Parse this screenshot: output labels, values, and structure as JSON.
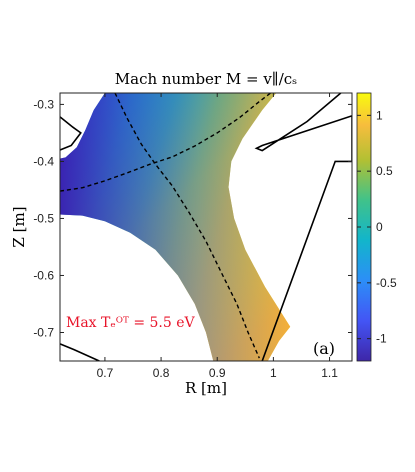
{
  "chart_data": {
    "type": "heatmap",
    "title": "Mach number M = v∥/cₛ",
    "xlabel": "R [m]",
    "ylabel": "Z [m]",
    "xlim": [
      0.62,
      1.14
    ],
    "ylim": [
      -0.75,
      -0.28
    ],
    "x_ticks": [
      0.7,
      0.8,
      0.9,
      1.0,
      1.1
    ],
    "x_tick_labels": [
      "0.7",
      "0.8",
      "0.9",
      "1",
      "1.1"
    ],
    "y_ticks": [
      -0.3,
      -0.4,
      -0.5,
      -0.6,
      -0.7
    ],
    "y_tick_labels": [
      "-0.3",
      "-0.4",
      "-0.5",
      "-0.6",
      "-0.7"
    ],
    "colorbar": {
      "range": [
        -1.2,
        1.2
      ],
      "ticks": [
        1,
        0.5,
        0,
        -0.5,
        -1
      ],
      "tick_labels": [
        "1",
        "0.5",
        "0",
        "-0.5",
        "-1"
      ],
      "colormap": "parula"
    },
    "annotation": "Max Tₑᴼᵀ = 5.5 eV",
    "panel_label": "(a)",
    "grid": false,
    "colors": {
      "annotation": "#e8142a",
      "dashed_line": "#000000",
      "wall": "#000000"
    }
  }
}
